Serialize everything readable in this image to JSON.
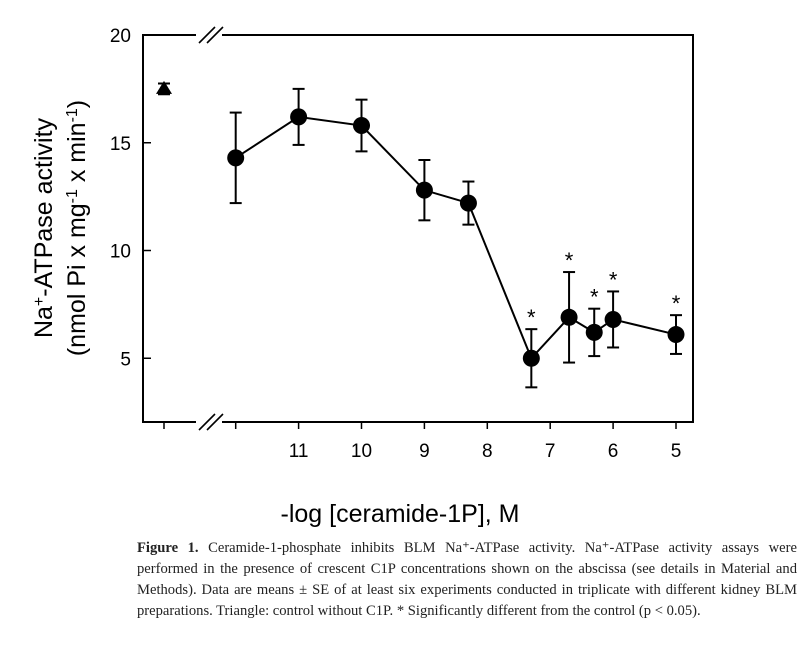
{
  "chart_data": {
    "type": "line",
    "xlabel": "-log [ceramide-1P], M",
    "ylabel_line1": "Na+-ATPase activity",
    "ylabel_line2": "(nmol Pi x mg-1 x min-1)",
    "ylim": [
      2,
      20
    ],
    "yticks": [
      5,
      10,
      15,
      20
    ],
    "xticks": [
      12,
      11,
      10,
      9,
      8,
      7,
      6,
      5
    ],
    "xtick_labels": [
      "",
      "11",
      "10",
      "9",
      "8",
      "7",
      "6",
      "5"
    ],
    "x_reversed": true,
    "axis_break": true,
    "grid": false,
    "control": {
      "marker": "triangle",
      "value": 17.5,
      "error": 0.25
    },
    "series": [
      {
        "marker": "circle",
        "x": [
          12,
          11,
          10,
          9,
          8.3,
          7.3,
          6.7,
          6.3,
          6,
          5
        ],
        "y": [
          14.3,
          16.2,
          15.8,
          12.8,
          12.2,
          5.0,
          6.9,
          6.2,
          6.8,
          6.1
        ],
        "error": [
          2.1,
          1.3,
          1.2,
          1.4,
          1.0,
          1.35,
          2.1,
          1.1,
          1.3,
          0.9
        ],
        "significant": [
          false,
          false,
          false,
          false,
          false,
          true,
          true,
          true,
          true,
          true
        ]
      }
    ],
    "significance_marker": "*",
    "color": "#000000"
  },
  "caption": {
    "label": "Figure 1.",
    "text": " Ceramide-1-phosphate inhibits BLM Na⁺-ATPase activity. Na⁺-ATPase activity assays were performed in the presence of crescent C1P concentrations shown on the abscissa (see details in Material and Methods). Data are means ± SE of at least six experiments conducted in triplicate with different kidney BLM preparations. Triangle: control without C1P. * Significantly different from the control (p < 0.05)."
  }
}
